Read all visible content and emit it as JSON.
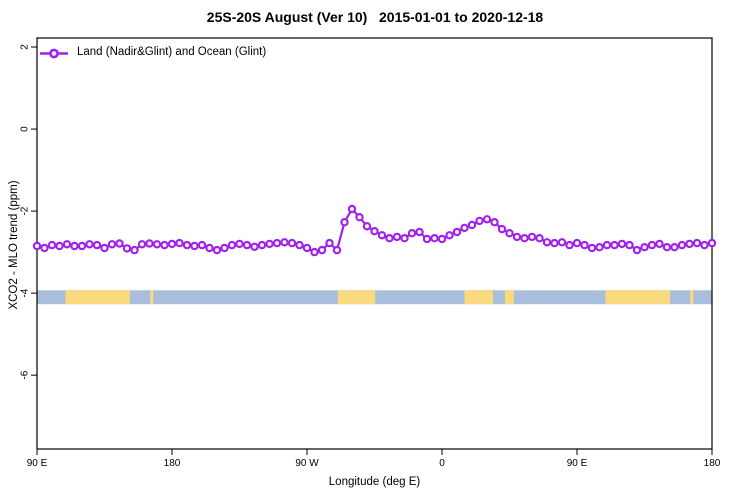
{
  "chart_data": {
    "type": "line",
    "title": "25S-20S August (Ver 10)   2015-01-01 to 2020-12-18",
    "xlabel": "Longitude (deg E)",
    "ylabel": "XCO2 - MLO trend (ppm)",
    "legend": [
      {
        "label": "Land (Nadir&Glint) and Ocean (Glint)",
        "color": "#A020F0",
        "marker": "open-circle"
      }
    ],
    "legend_position": "top-left-inside",
    "grid": false,
    "xlim": [
      90,
      540
    ],
    "ylim": [
      -7.8,
      2.22
    ],
    "x_ticks": [
      {
        "value": 90,
        "label": "90 E"
      },
      {
        "value": 180,
        "label": "180"
      },
      {
        "value": 270,
        "label": "90 W"
      },
      {
        "value": 360,
        "label": "0"
      },
      {
        "value": 450,
        "label": "90 E"
      },
      {
        "value": 540,
        "label": "180"
      }
    ],
    "y_ticks": [
      {
        "value": 2,
        "label": "2"
      },
      {
        "value": 0,
        "label": "0"
      },
      {
        "value": -2,
        "label": "-2"
      },
      {
        "value": -4,
        "label": "-4"
      },
      {
        "value": -6,
        "label": "-6"
      }
    ],
    "series": [
      {
        "name": "Land (Nadir&Glint) and Ocean (Glint)",
        "color": "#A020F0",
        "marker_fill": "#FFFFFF",
        "x": [
          90,
          95,
          100,
          105,
          110,
          115,
          120,
          125,
          130,
          135,
          140,
          145,
          150,
          155,
          160,
          165,
          170,
          175,
          180,
          185,
          190,
          195,
          200,
          205,
          210,
          215,
          220,
          225,
          230,
          235,
          240,
          245,
          250,
          255,
          260,
          265,
          270,
          275,
          280,
          285,
          290,
          295,
          300,
          305,
          310,
          315,
          320,
          325,
          330,
          335,
          340,
          345,
          350,
          355,
          360,
          365,
          370,
          375,
          380,
          385,
          390,
          395,
          400,
          405,
          410,
          415,
          420,
          425,
          430,
          435,
          440,
          445,
          450,
          455,
          460,
          465,
          470,
          475,
          480,
          485,
          490,
          495,
          500,
          505,
          510,
          515,
          520,
          525,
          530,
          535,
          540
        ],
        "values": [
          -2.85,
          -2.9,
          -2.83,
          -2.85,
          -2.81,
          -2.85,
          -2.85,
          -2.81,
          -2.83,
          -2.9,
          -2.81,
          -2.79,
          -2.91,
          -2.95,
          -2.81,
          -2.79,
          -2.81,
          -2.83,
          -2.8,
          -2.78,
          -2.83,
          -2.85,
          -2.83,
          -2.9,
          -2.95,
          -2.9,
          -2.83,
          -2.8,
          -2.83,
          -2.87,
          -2.83,
          -2.8,
          -2.78,
          -2.76,
          -2.78,
          -2.83,
          -2.9,
          -3.0,
          -2.95,
          -2.78,
          -2.95,
          -2.27,
          -1.95,
          -2.15,
          -2.37,
          -2.49,
          -2.59,
          -2.66,
          -2.63,
          -2.66,
          -2.54,
          -2.51,
          -2.68,
          -2.66,
          -2.68,
          -2.59,
          -2.51,
          -2.41,
          -2.34,
          -2.24,
          -2.2,
          -2.27,
          -2.44,
          -2.54,
          -2.63,
          -2.66,
          -2.63,
          -2.66,
          -2.76,
          -2.78,
          -2.76,
          -2.83,
          -2.78,
          -2.83,
          -2.9,
          -2.88,
          -2.83,
          -2.83,
          -2.8,
          -2.83,
          -2.95,
          -2.88,
          -2.83,
          -2.8,
          -2.88,
          -2.88,
          -2.83,
          -2.8,
          -2.78,
          -2.83,
          -2.78
        ]
      }
    ],
    "map_band": {
      "description": "land/ocean strip of the 25S-20S latitude band",
      "y_top": -3.93,
      "y_bottom": -4.27,
      "ocean_color": "#A9BEDB",
      "land_color": "#FBD97E",
      "land_segments_lon": [
        [
          109,
          152
        ],
        [
          165.5,
          167.5
        ],
        [
          290.5,
          315.5
        ],
        [
          375,
          394
        ],
        [
          402,
          408
        ],
        [
          469,
          512
        ],
        [
          525.5,
          527.5
        ]
      ]
    }
  }
}
